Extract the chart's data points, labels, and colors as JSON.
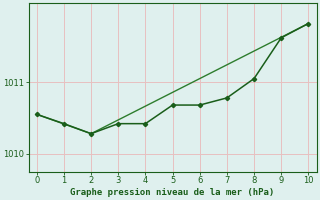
{
  "title": "Graphe pression niveau de la mer (hPa)",
  "background_color": "#dff0ee",
  "grid_color": "#e8c0c0",
  "line1_x": [
    0,
    1,
    2,
    3,
    4,
    5,
    6,
    7,
    8,
    9,
    10
  ],
  "line1_y": [
    1010.55,
    1010.42,
    1010.28,
    1010.42,
    1010.42,
    1010.68,
    1010.68,
    1010.78,
    1011.05,
    1011.62,
    1011.82
  ],
  "line2_x": [
    0,
    2,
    10
  ],
  "line2_y": [
    1010.55,
    1010.28,
    1011.82
  ],
  "line_color1": "#1a5e1a",
  "line_color2": "#2e7d2e",
  "ylim": [
    1009.75,
    1012.1
  ],
  "xlim": [
    -0.3,
    10.3
  ],
  "yticks": [
    1010,
    1011
  ],
  "xticks": [
    0,
    1,
    2,
    3,
    4,
    5,
    6,
    7,
    8,
    9,
    10
  ],
  "xlabel_fontsize": 6.5,
  "tick_fontsize": 6.0
}
